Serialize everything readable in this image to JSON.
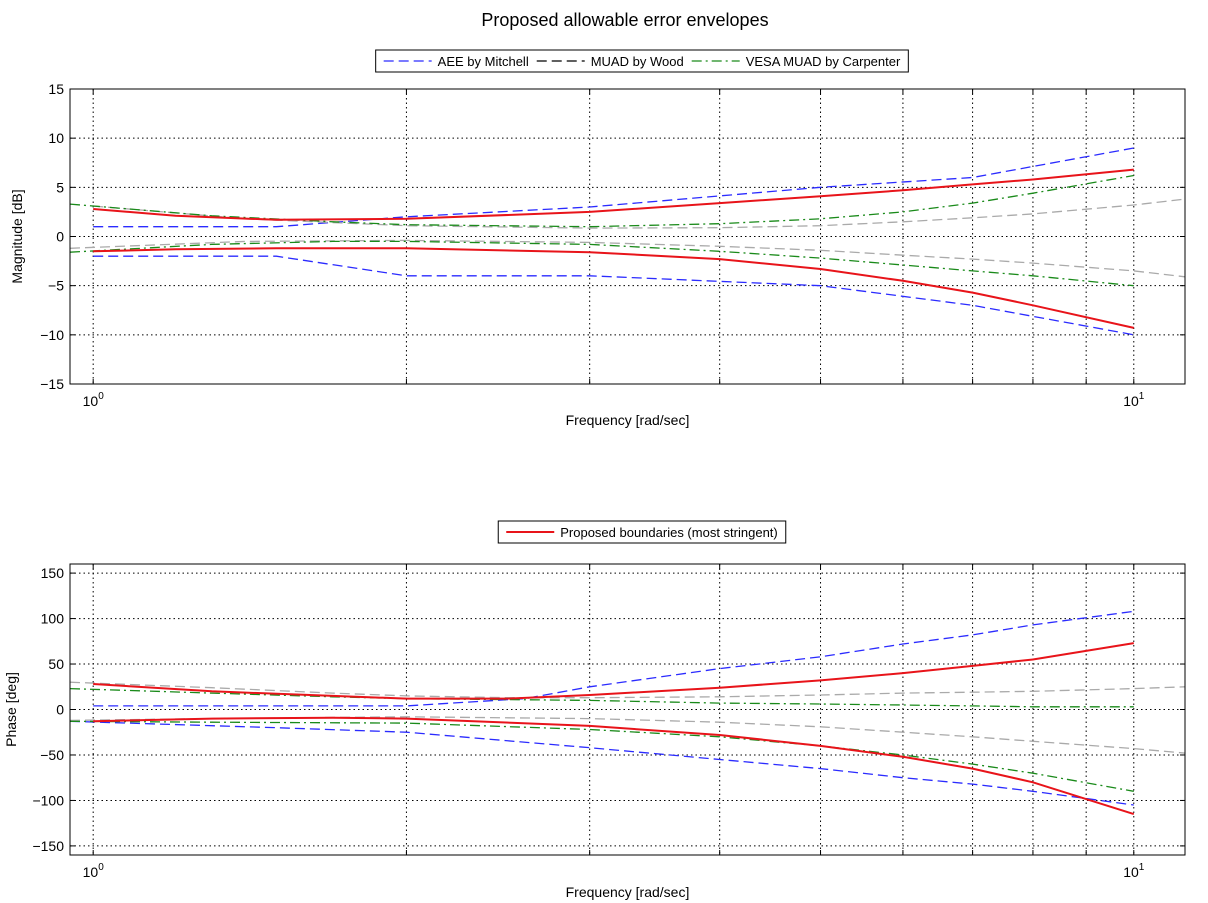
{
  "figure": {
    "title": "Proposed allowable error envelopes"
  },
  "chart_data": [
    {
      "type": "line",
      "title": "Proposed allowable error envelopes",
      "xlabel": "Frequency [rad/sec]",
      "ylabel": "Magnitude [dB]",
      "xscale": "log",
      "xlim": [
        0.95,
        11.2
      ],
      "ylim": [
        -15,
        15
      ],
      "yticks": [
        -15,
        -10,
        -5,
        0,
        5,
        10,
        15
      ],
      "xticks": [
        {
          "value": 1,
          "base": "10",
          "exp": "0"
        },
        {
          "value": 10,
          "base": "10",
          "exp": "1"
        }
      ],
      "grid": true,
      "legend": {
        "placement": "top-center",
        "entries": [
          {
            "label": "AEE by Mitchell",
            "color": "#2b2bff",
            "dash": "dashed"
          },
          {
            "label": "MUAD by Wood",
            "color": "#000000",
            "dash": "dashed"
          },
          {
            "label": "VESA MUAD by Carpenter",
            "color": "#1a8a1a",
            "dash": "dashdot"
          }
        ]
      },
      "series": [
        {
          "name": "AEE by Mitchell",
          "color": "#2b2bff",
          "dash": "dashed",
          "x": [
            1,
            1.5,
            2,
            3,
            5,
            7,
            10
          ],
          "y": [
            1,
            1,
            2,
            3,
            5,
            6,
            9
          ]
        },
        {
          "name": "AEE by Mitchell",
          "color": "#2b2bff",
          "dash": "dashed",
          "x": [
            1,
            1.5,
            2,
            3,
            5,
            7,
            10
          ],
          "y": [
            -2,
            -2,
            -4,
            -4,
            -5,
            -7,
            -10
          ]
        },
        {
          "color": "#aaaaaa",
          "dash": "dashed",
          "x": [
            1,
            1.4,
            2,
            3,
            4,
            5,
            6,
            7,
            8,
            10,
            11.2
          ],
          "y": [
            3.1,
            1.8,
            1.1,
            0.85,
            0.9,
            1.1,
            1.5,
            1.9,
            2.3,
            3.2,
            3.8
          ]
        },
        {
          "color": "#aaaaaa",
          "dash": "dashed",
          "x": [
            0.95,
            1.4,
            2,
            3,
            4,
            5,
            6,
            7,
            8,
            10,
            11.2
          ],
          "y": [
            -1.2,
            -0.5,
            -0.4,
            -0.6,
            -1.0,
            -1.4,
            -1.9,
            -2.3,
            -2.7,
            -3.5,
            -4.1
          ]
        },
        {
          "name": "VESA MUAD by Carpenter",
          "color": "#1a8a1a",
          "dash": "dashdot",
          "x": [
            0.95,
            1.3,
            1.7,
            2,
            3,
            4,
            5,
            6,
            7,
            8,
            10
          ],
          "y": [
            3.3,
            2.1,
            1.5,
            1.2,
            1.0,
            1.3,
            1.8,
            2.5,
            3.4,
            4.4,
            6.2
          ]
        },
        {
          "name": "VESA MUAD by Carpenter",
          "color": "#1a8a1a",
          "dash": "dashdot",
          "x": [
            0.95,
            1.3,
            1.7,
            2,
            3,
            4,
            5,
            6,
            7,
            8,
            10
          ],
          "y": [
            -1.6,
            -0.8,
            -0.5,
            -0.5,
            -0.8,
            -1.5,
            -2.2,
            -2.9,
            -3.5,
            -4.0,
            -5.0
          ]
        },
        {
          "name": "Proposed boundaries (most stringent)",
          "color": "#e8141a",
          "dash": "solid",
          "x": [
            1,
            1.2,
            1.5,
            2,
            3,
            4,
            5,
            6,
            7,
            8,
            10
          ],
          "y": [
            2.8,
            2.1,
            1.7,
            1.8,
            2.5,
            3.4,
            4.1,
            4.7,
            5.3,
            5.8,
            6.8
          ]
        },
        {
          "name": "Proposed boundaries (most stringent)",
          "color": "#e8141a",
          "dash": "solid",
          "x": [
            1,
            1.2,
            1.5,
            2,
            3,
            4,
            5,
            6,
            7,
            8,
            10
          ],
          "y": [
            -1.5,
            -1.3,
            -1.2,
            -1.2,
            -1.6,
            -2.3,
            -3.3,
            -4.5,
            -5.7,
            -7.0,
            -9.3
          ]
        }
      ]
    },
    {
      "type": "line",
      "title": "",
      "xlabel": "Frequency [rad/sec]",
      "ylabel": "Phase [deg]",
      "xscale": "log",
      "xlim": [
        0.95,
        11.2
      ],
      "ylim": [
        -160,
        160
      ],
      "yticks": [
        -150,
        -100,
        -50,
        0,
        50,
        100,
        150
      ],
      "xticks": [
        {
          "value": 1,
          "base": "10",
          "exp": "0"
        },
        {
          "value": 10,
          "base": "10",
          "exp": "1"
        }
      ],
      "grid": true,
      "legend": {
        "placement": "top-center",
        "entries": [
          {
            "label": "Proposed boundaries (most stringent)",
            "color": "#e8141a",
            "dash": "solid"
          }
        ]
      },
      "series": [
        {
          "name": "AEE by Mitchell",
          "color": "#2b2bff",
          "dash": "dashed",
          "x": [
            1,
            1.5,
            2,
            2.6,
            3,
            4,
            5,
            6,
            7,
            8,
            10
          ],
          "y": [
            4,
            4,
            4,
            12,
            25,
            45,
            58,
            72,
            82,
            93,
            108
          ]
        },
        {
          "name": "AEE by Mitchell",
          "color": "#2b2bff",
          "dash": "dashed",
          "x": [
            0.95,
            1.5,
            2,
            3,
            4,
            5,
            6,
            7,
            8,
            10
          ],
          "y": [
            -13,
            -20,
            -25,
            -42,
            -55,
            -65,
            -75,
            -82,
            -90,
            -105
          ]
        },
        {
          "color": "#aaaaaa",
          "dash": "dashed",
          "x": [
            0.95,
            1.3,
            1.7,
            2,
            2.5,
            3,
            4,
            5,
            6,
            7,
            8,
            10,
            11.2
          ],
          "y": [
            30,
            24,
            18,
            15,
            13,
            13,
            14,
            16,
            18,
            19,
            20,
            23,
            25
          ]
        },
        {
          "color": "#aaaaaa",
          "dash": "dashed",
          "x": [
            0.95,
            1.3,
            2,
            3,
            4,
            5,
            6,
            7,
            8,
            10,
            11.2
          ],
          "y": [
            -12,
            -10,
            -8,
            -10,
            -14,
            -19,
            -25,
            -30,
            -35,
            -43,
            -48
          ]
        },
        {
          "name": "VESA MUAD by Carpenter",
          "color": "#1a8a1a",
          "dash": "dashdot",
          "x": [
            0.95,
            1.3,
            1.7,
            2,
            3,
            4,
            5,
            6,
            7,
            8,
            10
          ],
          "y": [
            23,
            18,
            14,
            12,
            10,
            7,
            6,
            5,
            4,
            3,
            3
          ]
        },
        {
          "name": "VESA MUAD by Carpenter",
          "color": "#1a8a1a",
          "dash": "dashdot",
          "x": [
            0.95,
            1.3,
            2,
            3,
            4,
            5,
            6,
            7,
            8,
            10
          ],
          "y": [
            -13,
            -14,
            -15,
            -22,
            -30,
            -40,
            -50,
            -60,
            -70,
            -90
          ]
        },
        {
          "name": "Proposed boundaries (most stringent)",
          "color": "#e8141a",
          "dash": "solid",
          "x": [
            1,
            1.3,
            1.7,
            2,
            2.5,
            3,
            4,
            5,
            6,
            7,
            8,
            10
          ],
          "y": [
            28,
            20,
            15,
            12,
            12,
            16,
            24,
            32,
            40,
            48,
            55,
            73
          ]
        },
        {
          "name": "Proposed boundaries (most stringent)",
          "color": "#e8141a",
          "dash": "solid",
          "x": [
            1,
            1.3,
            1.7,
            2,
            3,
            4,
            5,
            6,
            7,
            8,
            10
          ],
          "y": [
            -13,
            -10,
            -9,
            -10,
            -18,
            -28,
            -40,
            -52,
            -65,
            -80,
            -115
          ]
        }
      ]
    }
  ]
}
